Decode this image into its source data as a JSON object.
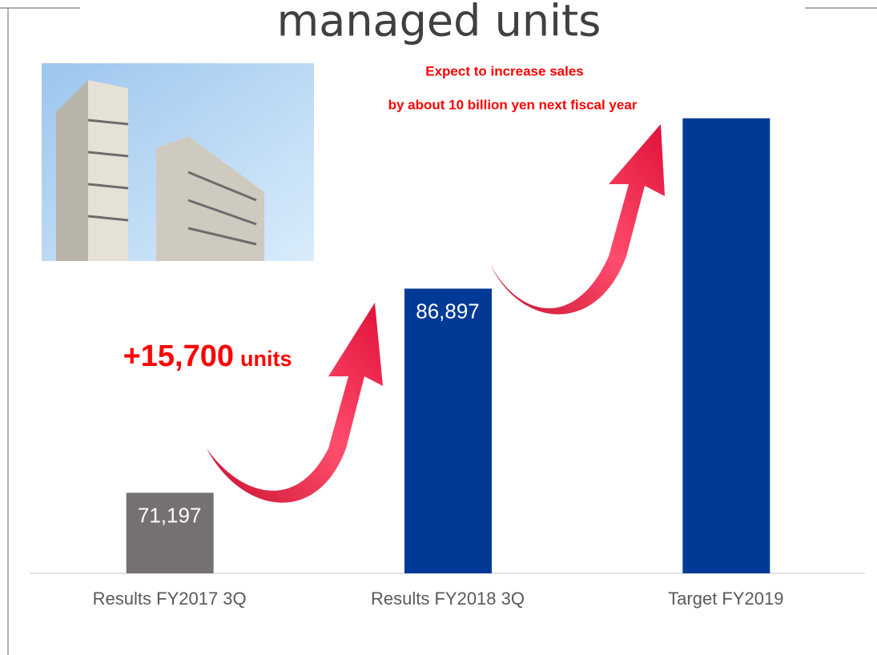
{
  "chart_data": {
    "type": "bar",
    "title": "managed units",
    "categories": [
      "Results FY2017 3Q",
      "Results FY2018 3Q",
      "Target FY2019"
    ],
    "values": [
      71197,
      86897,
      100000
    ],
    "value_labels": [
      "71,197",
      "86,897",
      null
    ],
    "colors": [
      "#767171",
      "#003a96",
      "#003a96"
    ],
    "ylim": [
      65000,
      103000
    ],
    "annotations": [
      "Expect to increase sales",
      "by about 10 billion yen next fiscal year",
      "+15,700",
      "units"
    ]
  }
}
